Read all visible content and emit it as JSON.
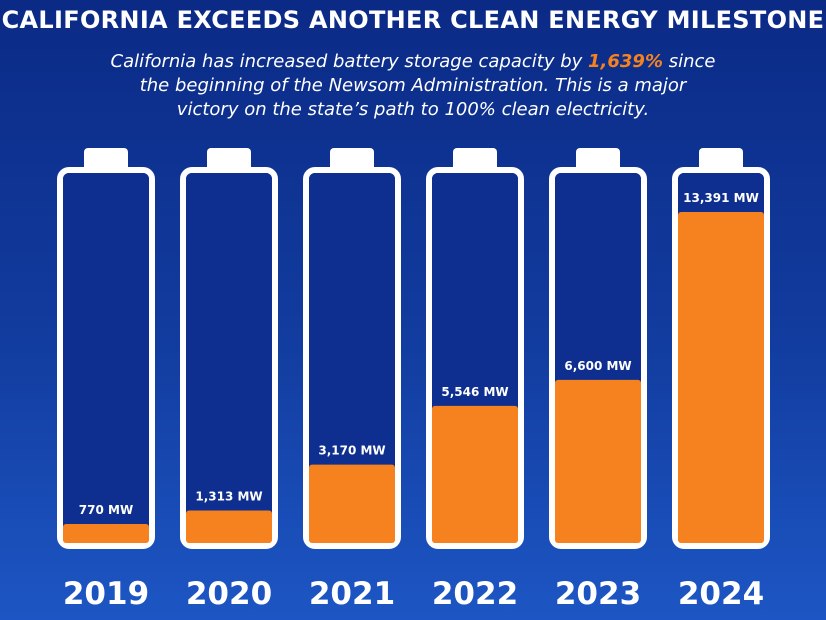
{
  "chart_data": {
    "type": "battery-bar",
    "title": "CALIFORNIA EXCEEDS ANOTHER CLEAN ENERGY MILESTONE",
    "subtitle": {
      "before": "California has increased battery storage capacity by ",
      "highlight": "1,639%",
      "after": " since the beginning of the Newsom Administration. This is a major victory on the state’s path to 100% clean electricity."
    },
    "categories": [
      "2019",
      "2020",
      "2021",
      "2022",
      "2023",
      "2024"
    ],
    "values": [
      770,
      1313,
      3170,
      5546,
      6600,
      13391
    ],
    "value_labels": [
      "770 MW",
      "1,313 MW",
      "3,170 MW",
      "5,546 MW",
      "6,600 MW",
      "13,391 MW"
    ],
    "color": "#f5821f",
    "highlight_color": "#f5821f"
  }
}
